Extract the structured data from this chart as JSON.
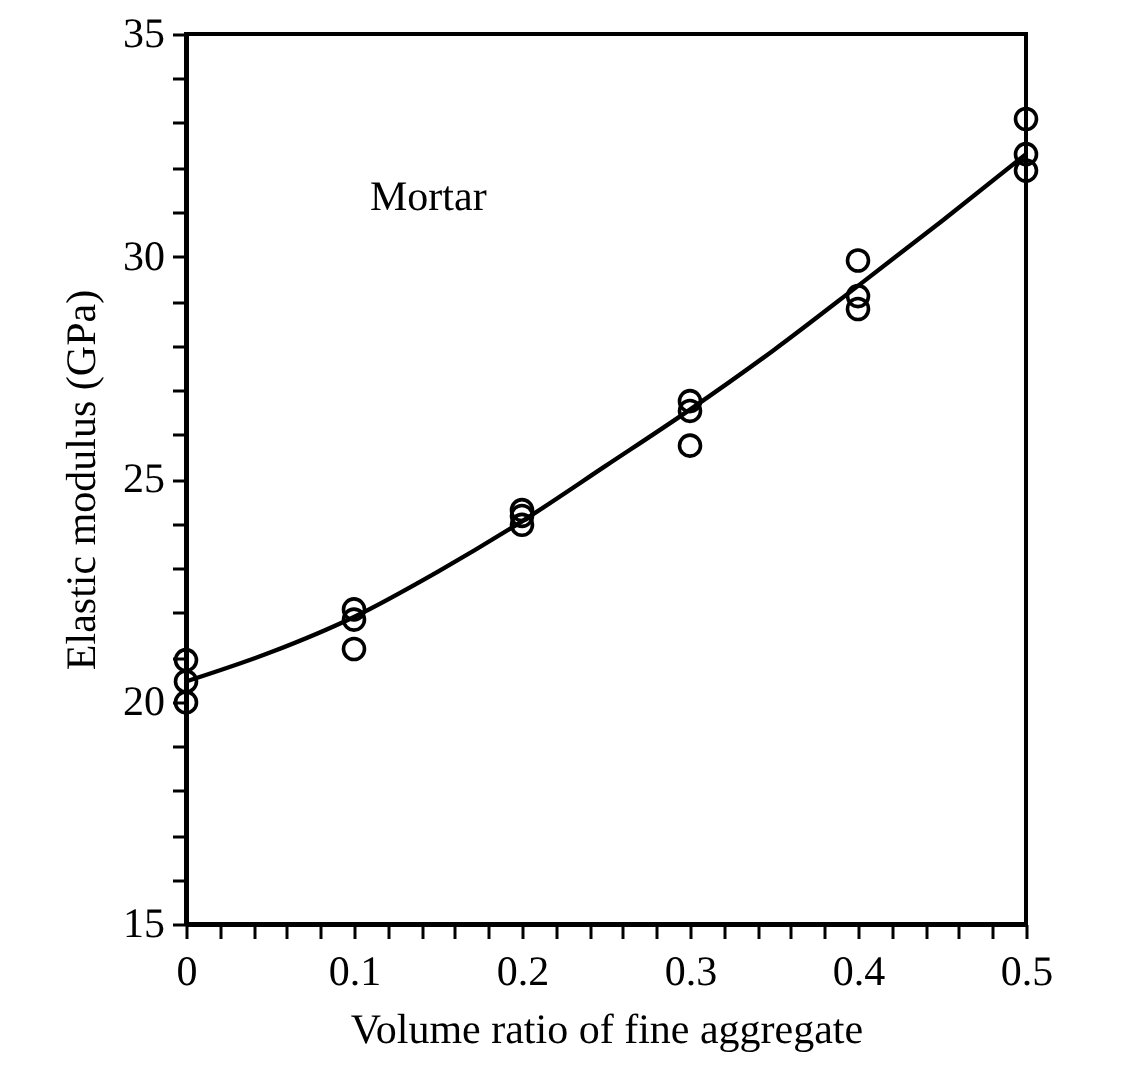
{
  "chart_data": {
    "type": "scatter",
    "xlabel": "Volume ratio of fine aggregate",
    "ylabel": "Elastic modulus (GPa)",
    "annotations": [
      "Mortar"
    ],
    "xlim": [
      0,
      0.5
    ],
    "ylim": [
      15,
      35
    ],
    "xticks": [
      0,
      {
        "value": 0.02,
        "label": null
      },
      {
        "value": 0.04,
        "label": null
      },
      {
        "value": 0.06,
        "label": null
      },
      {
        "value": 0.08,
        "label": null
      },
      0.1,
      {
        "value": 0.12,
        "label": null
      },
      {
        "value": 0.14,
        "label": null
      },
      {
        "value": 0.16,
        "label": null
      },
      {
        "value": 0.18,
        "label": null
      },
      0.2,
      {
        "value": 0.22,
        "label": null
      },
      {
        "value": 0.24,
        "label": null
      },
      {
        "value": 0.26,
        "label": null
      },
      {
        "value": 0.28,
        "label": null
      },
      0.3,
      {
        "value": 0.32,
        "label": null
      },
      {
        "value": 0.34,
        "label": null
      },
      {
        "value": 0.36,
        "label": null
      },
      {
        "value": 0.38,
        "label": null
      },
      0.4,
      {
        "value": 0.42,
        "label": null
      },
      {
        "value": 0.44,
        "label": null
      },
      {
        "value": 0.46,
        "label": null
      },
      {
        "value": 0.48,
        "label": null
      },
      0.5
    ],
    "yticks": [
      15,
      {
        "value": 16,
        "label": null
      },
      {
        "value": 17,
        "label": null
      },
      {
        "value": 18,
        "label": null
      },
      {
        "value": 19,
        "label": null
      },
      20,
      {
        "value": 21,
        "label": null
      },
      {
        "value": 22,
        "label": null
      },
      {
        "value": 23,
        "label": null
      },
      {
        "value": 24,
        "label": null
      },
      25,
      {
        "value": 26,
        "label": null
      },
      {
        "value": 27,
        "label": null
      },
      {
        "value": 28,
        "label": null
      },
      {
        "value": 29,
        "label": null
      },
      30,
      {
        "value": 31,
        "label": null
      },
      {
        "value": 32,
        "label": null
      },
      {
        "value": 33,
        "label": null
      },
      {
        "value": 34,
        "label": null
      },
      35
    ],
    "marker": "circle",
    "grid": false,
    "series": [
      {
        "color": "#000000",
        "x": [
          0,
          0,
          0,
          0.1,
          0.1,
          0.1,
          0.2,
          0.2,
          0.2,
          0.3,
          0.3,
          0.3,
          0.4,
          0.4,
          0.4,
          0.5,
          0.5,
          0.5
        ],
        "values": [
          20.93,
          20.45,
          19.98,
          22.07,
          21.84,
          21.18,
          24.3,
          24.17,
          23.97,
          26.75,
          26.53,
          25.75,
          29.91,
          29.11,
          28.82,
          33.09,
          32.3,
          31.93
        ]
      },
      {
        "type": "line",
        "color": "#000000",
        "line_style": "solid",
        "marker": "none",
        "x": [
          0,
          0.05,
          0.1,
          0.15,
          0.2,
          0.25,
          0.3,
          0.35,
          0.4,
          0.45,
          0.5
        ],
        "values": [
          20.45,
          21.1,
          21.9,
          22.92,
          24.05,
          25.3,
          26.56,
          27.9,
          29.34,
          30.8,
          32.3
        ]
      }
    ]
  }
}
